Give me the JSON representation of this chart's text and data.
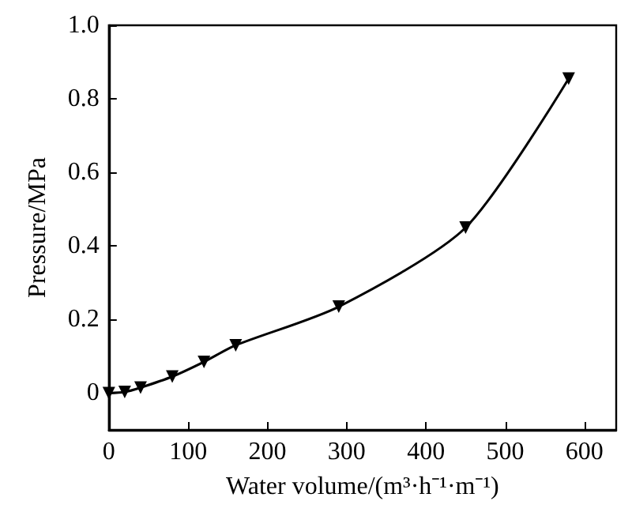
{
  "chart_data": {
    "type": "line",
    "xlabel": "Water volume/(m³·h⁻¹·m⁻¹)",
    "ylabel": "Pressure/MPa",
    "x": [
      0,
      20,
      40,
      80,
      120,
      160,
      290,
      450,
      580
    ],
    "series": [
      {
        "color": "#000000",
        "values": [
          0,
          0.003,
          0.015,
          0.045,
          0.085,
          0.13,
          0.235,
          0.45,
          0.855
        ]
      }
    ],
    "xlim": [
      0,
      640
    ],
    "xticks": [
      0,
      100,
      200,
      300,
      400,
      500,
      600
    ],
    "ylim": [
      -0.1,
      1.0
    ],
    "yticks": [
      0,
      0.2,
      0.4,
      0.6,
      0.8,
      {
        "value": 1.0,
        "label": "1.0"
      }
    ],
    "marker": "triangle",
    "line_style": "solid",
    "grid": false
  }
}
